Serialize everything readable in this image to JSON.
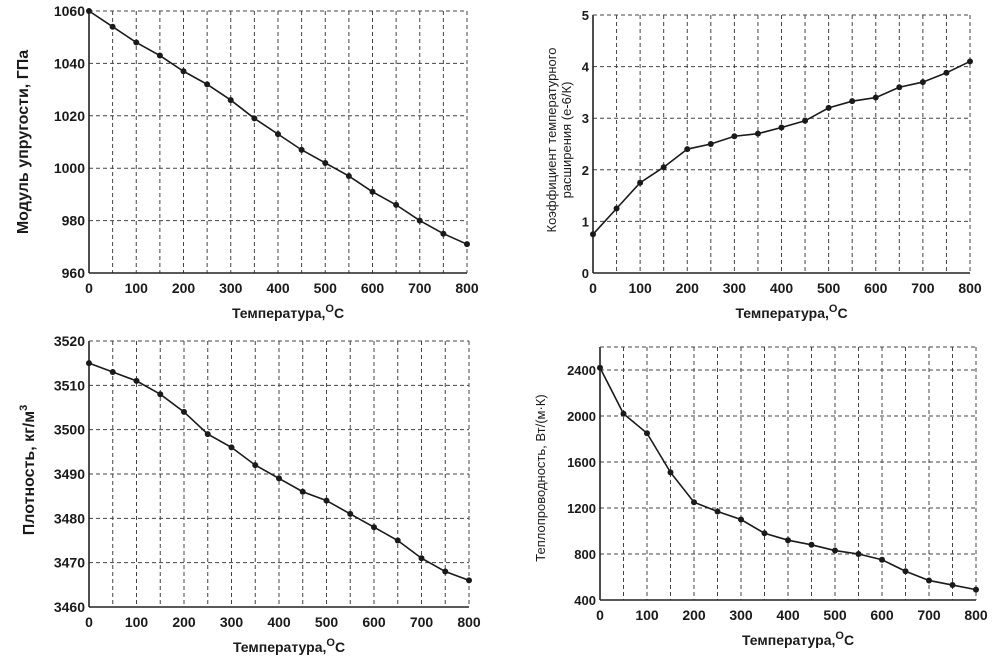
{
  "chart_data": [
    {
      "type": "line",
      "title": "",
      "xlabel": "Температура,",
      "xlabel_unit": "С",
      "xlabel_sup": "О",
      "ylabel": "Модуль упругости, ГПа",
      "xlim": [
        0,
        800
      ],
      "ylim": [
        960,
        1060
      ],
      "grid": true,
      "x_ticks": [
        "0",
        "100",
        "200",
        "300",
        "400",
        "500",
        "600",
        "700",
        "800"
      ],
      "y_ticks": [
        "960",
        "980",
        "1000",
        "1020",
        "1040",
        "1060"
      ],
      "x": [
        0,
        50,
        100,
        150,
        200,
        250,
        300,
        350,
        400,
        450,
        500,
        550,
        600,
        650,
        700,
        750,
        800
      ],
      "series": [
        {
          "values": [
            1060,
            1054,
            1048,
            1043,
            1037,
            1032,
            1026,
            1019,
            1013,
            1007,
            1002,
            997,
            991,
            986,
            980,
            975,
            971
          ]
        }
      ]
    },
    {
      "type": "line",
      "title": "",
      "xlabel": "Температура,",
      "xlabel_unit": "С",
      "xlabel_sup": "О",
      "ylabel_lines": [
        "Коэффициент температурного",
        "расширения (е-6/К)"
      ],
      "xlim": [
        0,
        800
      ],
      "ylim": [
        0,
        5
      ],
      "grid": true,
      "x_ticks": [
        "0",
        "100",
        "200",
        "300",
        "400",
        "500",
        "600",
        "700",
        "800"
      ],
      "y_ticks": [
        "0",
        "1",
        "2",
        "3",
        "4",
        "5"
      ],
      "x": [
        0,
        50,
        100,
        150,
        200,
        250,
        300,
        350,
        400,
        450,
        500,
        550,
        600,
        650,
        700,
        750,
        800
      ],
      "series": [
        {
          "values": [
            0.75,
            1.25,
            1.75,
            2.05,
            2.4,
            2.5,
            2.65,
            2.7,
            2.82,
            2.95,
            3.2,
            3.33,
            3.4,
            3.6,
            3.7,
            3.88,
            4.1
          ]
        }
      ]
    },
    {
      "type": "line",
      "title": "",
      "xlabel": "Температура,",
      "xlabel_unit": "С",
      "xlabel_sup": "О",
      "ylabel": "Плотность, кг/м",
      "ylabel_sup": "3",
      "xlim": [
        0,
        800
      ],
      "ylim": [
        3460,
        3520
      ],
      "grid": true,
      "x_ticks": [
        "0",
        "100",
        "200",
        "300",
        "400",
        "500",
        "600",
        "700",
        "800"
      ],
      "y_ticks": [
        "3460",
        "3470",
        "3480",
        "3490",
        "3500",
        "3510",
        "3520"
      ],
      "x": [
        0,
        50,
        100,
        150,
        200,
        250,
        300,
        350,
        400,
        450,
        500,
        550,
        600,
        650,
        700,
        750,
        800
      ],
      "series": [
        {
          "values": [
            3515,
            3513,
            3511,
            3508,
            3504,
            3499,
            3496,
            3492,
            3489,
            3486,
            3484,
            3481,
            3478,
            3475,
            3471,
            3468,
            3466
          ]
        }
      ]
    },
    {
      "type": "line",
      "title": "",
      "xlabel": "Температура,",
      "xlabel_unit": "С",
      "xlabel_sup": "О",
      "ylabel": "Теплопроводность, Вт/(м·К)",
      "xlim": [
        0,
        800
      ],
      "ylim": [
        400,
        2600
      ],
      "grid": true,
      "x_ticks": [
        "0",
        "100",
        "200",
        "300",
        "400",
        "500",
        "600",
        "700",
        "800"
      ],
      "y_ticks": [
        "400",
        "800",
        "1200",
        "1600",
        "2000",
        "2400"
      ],
      "x": [
        0,
        50,
        100,
        150,
        200,
        250,
        300,
        350,
        400,
        450,
        500,
        550,
        600,
        650,
        700,
        750,
        800
      ],
      "series": [
        {
          "values": [
            2420,
            2020,
            1850,
            1510,
            1250,
            1170,
            1100,
            980,
            920,
            880,
            830,
            800,
            750,
            650,
            570,
            530,
            490
          ]
        }
      ]
    }
  ]
}
